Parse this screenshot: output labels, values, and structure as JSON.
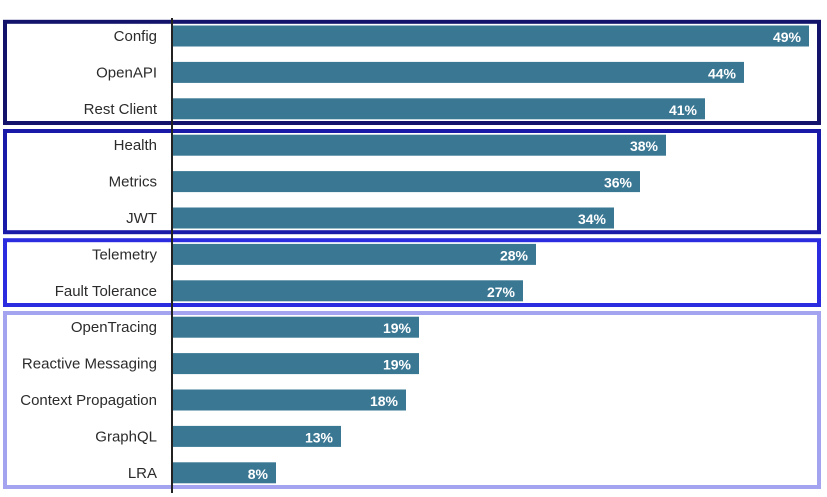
{
  "chart_data": {
    "type": "bar",
    "orientation": "horizontal",
    "categories": [
      "Config",
      "OpenAPI",
      "Rest Client",
      "Health",
      "Metrics",
      "JWT",
      "Telemetry",
      "Fault Tolerance",
      "OpenTracing",
      "Reactive Messaging",
      "Context Propagation",
      "GraphQL",
      "LRA"
    ],
    "values": [
      49,
      44,
      41,
      38,
      36,
      34,
      28,
      27,
      19,
      19,
      18,
      13,
      8
    ],
    "value_labels": [
      "49%",
      "44%",
      "41%",
      "38%",
      "36%",
      "34%",
      "28%",
      "27%",
      "19%",
      "19%",
      "18%",
      "13%",
      "8%"
    ],
    "xlim": [
      0,
      50
    ],
    "grid": false,
    "bar_color": "#3a7793",
    "groups": [
      {
        "members": [
          "Config",
          "OpenAPI",
          "Rest Client"
        ],
        "border_color": "#13136b"
      },
      {
        "members": [
          "Health",
          "Metrics",
          "JWT"
        ],
        "border_color": "#1a1aa8"
      },
      {
        "members": [
          "Telemetry",
          "Fault Tolerance"
        ],
        "border_color": "#2b2be0"
      },
      {
        "members": [
          "OpenTracing",
          "Reactive Messaging",
          "Context Propagation",
          "GraphQL",
          "LRA"
        ],
        "border_color": "#a3a3ef"
      }
    ]
  }
}
